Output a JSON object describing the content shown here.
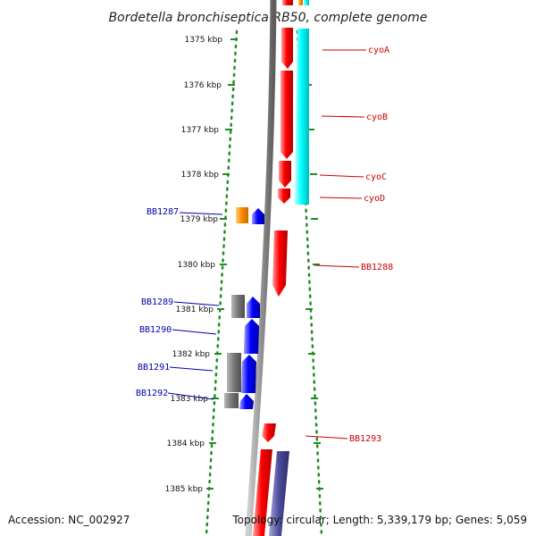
{
  "title": "Bordetella bronchiseptica RB50, complete genome",
  "footer": {
    "accession": "Accession: NC_002927",
    "summary": "Topology: circular; Length: 5,339,179 bp; Genes: 5,059"
  },
  "colors": {
    "forward_gene": "#ff0000",
    "reverse_gene": "#0000ff",
    "gray_feature": "#777777",
    "orange_feature": "#ff8c00",
    "cyan_feature": "#00ffff",
    "purple_feature": "#4a4a9a",
    "ruler_dots": "#228b22",
    "backbone": "#888888",
    "left_label": "#0000aa",
    "right_label": "#cc0000"
  },
  "ruler_labels": [
    "1375 kbp",
    "1376 kbp",
    "1377 kbp",
    "1378 kbp",
    "1379 kbp",
    "1380 kbp",
    "1381 kbp",
    "1382 kbp",
    "1383 kbp",
    "1384 kbp",
    "1385 kbp"
  ],
  "left_genes": [
    "BB1287",
    "BB1289",
    "BB1290",
    "BB1291",
    "BB1292"
  ],
  "right_genes": [
    "cyoA",
    "cyoB",
    "cyoC",
    "cyoD",
    "BB1288",
    "BB1293"
  ]
}
